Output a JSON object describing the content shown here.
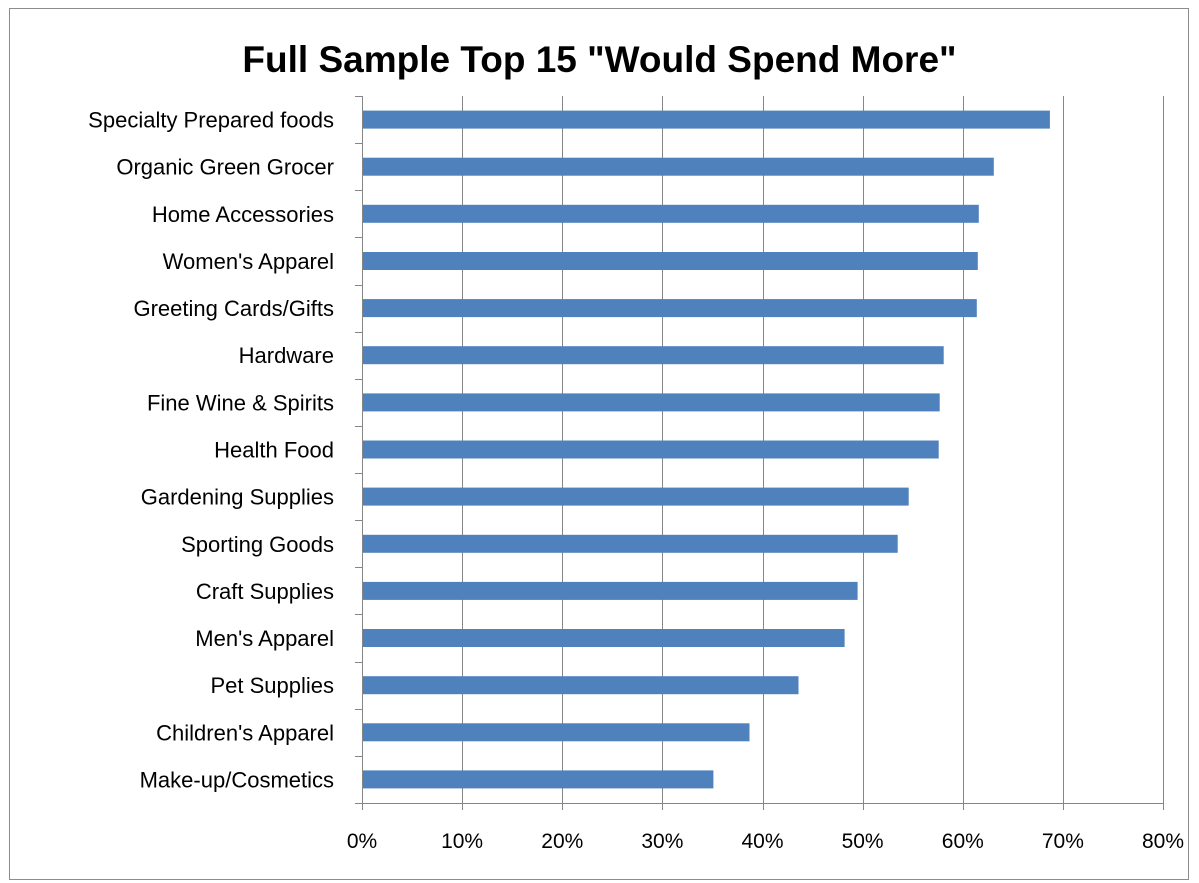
{
  "chart_data": {
    "type": "bar",
    "orientation": "horizontal",
    "title": "Full Sample Top 15 \"Would Spend More\"",
    "xlabel": "",
    "ylabel": "",
    "categories": [
      "Specialty Prepared foods",
      "Organic Green Grocer",
      "Home Accessories",
      "Women's Apparel",
      "Greeting Cards/Gifts",
      "Hardware",
      "Fine Wine & Spirits",
      "Health Food",
      "Gardening Supplies",
      "Sporting Goods",
      "Craft Supplies",
      "Men's Apparel",
      "Pet Supplies",
      "Children's Apparel",
      "Make-up/Cosmetics"
    ],
    "values": [
      68.7,
      63.1,
      61.6,
      61.5,
      61.4,
      58.1,
      57.7,
      57.6,
      54.6,
      53.5,
      49.5,
      48.2,
      43.6,
      38.7,
      35.1
    ],
    "xlim": [
      0,
      80
    ],
    "xticks": [
      0,
      10,
      20,
      30,
      40,
      50,
      60,
      70,
      80
    ],
    "tick_labels": [
      "0%",
      "10%",
      "20%",
      "30%",
      "40%",
      "50%",
      "60%",
      "70%",
      "80%"
    ],
    "grid": "vertical",
    "legend": "none",
    "colors": {
      "bar": "#4f81bd",
      "grid": "#868686",
      "axis": "#868686"
    }
  }
}
